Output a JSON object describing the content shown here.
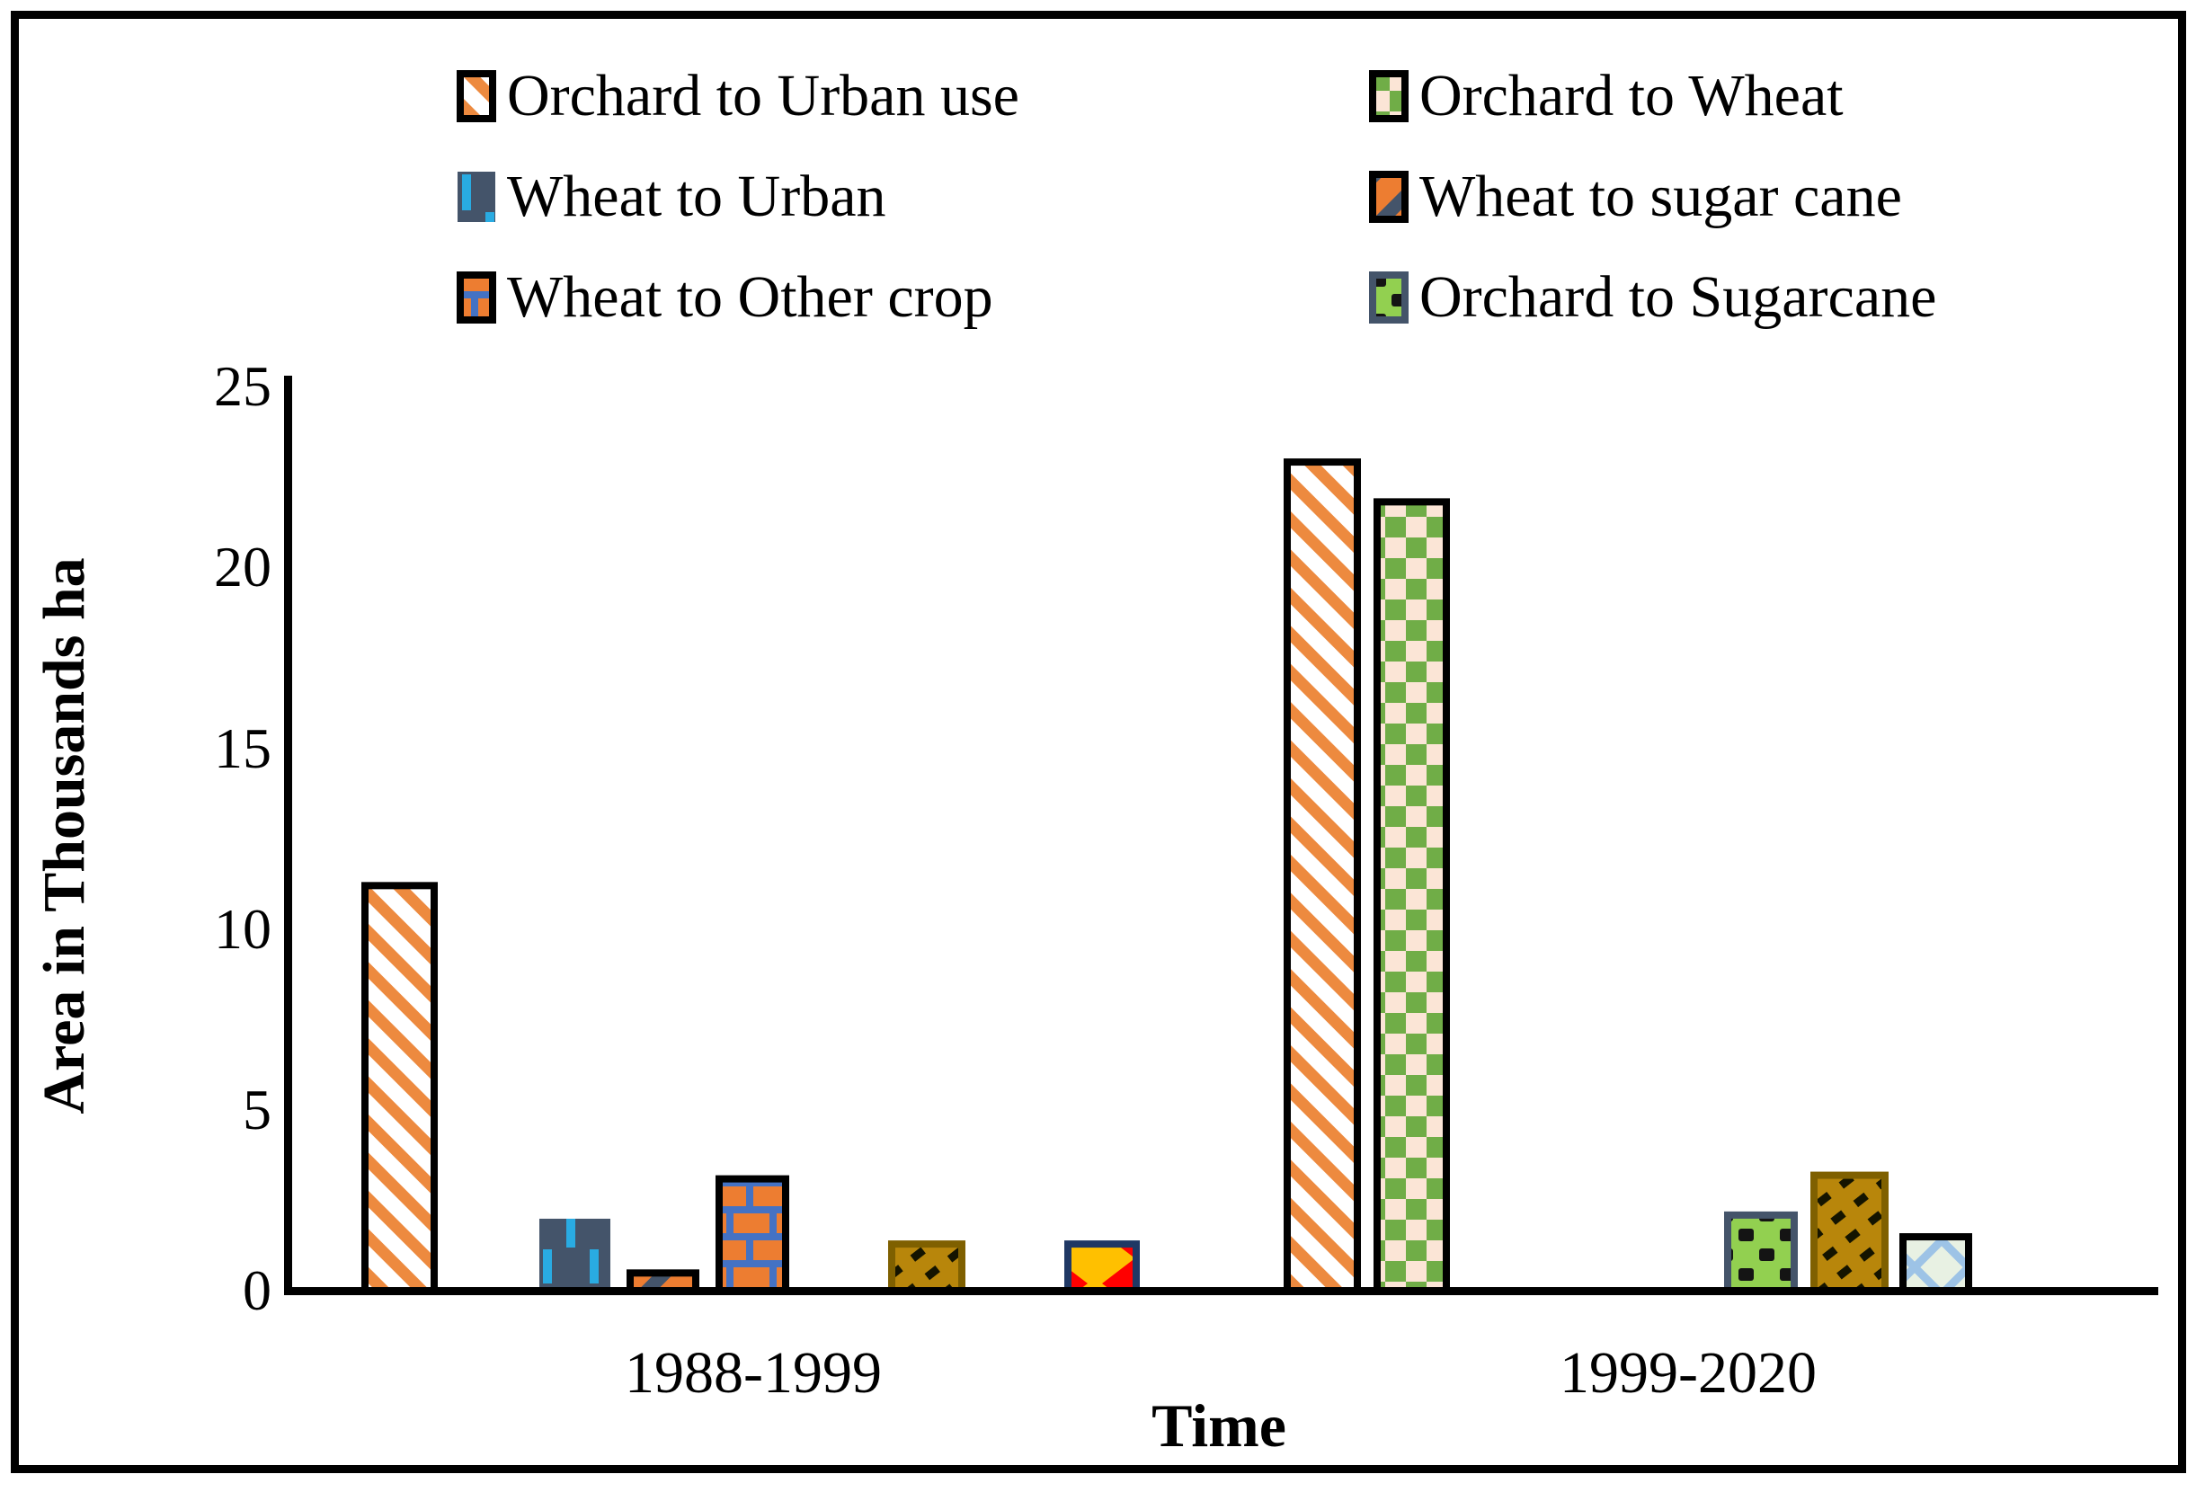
{
  "figure": {
    "background": "#FFFFFF",
    "frame_color": "#000000"
  },
  "legend": {
    "items": [
      {
        "label": "Orchard to Urban use",
        "pattern": "orchard-urban",
        "border": "#000000"
      },
      {
        "label": "Orchard to Wheat",
        "pattern": "orchard-wheat",
        "border": "#000000"
      },
      {
        "label": "Wheat to Urban",
        "pattern": "wheat-urban",
        "border": "none"
      },
      {
        "label": "Wheat to sugar cane",
        "pattern": "wheat-sugarcane",
        "border": "#000000"
      },
      {
        "label": "Wheat to Other crop",
        "pattern": "wheat-other",
        "border": "#000000"
      },
      {
        "label": "Orchard to Sugarcane",
        "pattern": "orchard-sugarcane",
        "border": "#44546A"
      }
    ]
  },
  "axes": {
    "y_title": "Area in Thousands ha",
    "x_title": "Time",
    "y_ticks": [
      25,
      20,
      15,
      10,
      5,
      0
    ],
    "categories": [
      "1988-1999",
      "1999-2020"
    ]
  },
  "palette": {
    "stripe_orange": "#ED8A3F",
    "deep_orange": "#ED7D31",
    "checker_green": "#70AD47",
    "checker_cream": "#FBE5D6",
    "slate": "#44546A",
    "cyan": "#29ABE2",
    "mortar_blue": "#4472C4",
    "bright_green": "#92D050",
    "gold": "#B8860B",
    "gold_border": "#7F6000",
    "yellow": "#FFC000",
    "red": "#FF0000",
    "pale_green": "#E8F1E3",
    "light_blue": "#9DC3E6",
    "navy": "#1F3864",
    "black": "#000000"
  },
  "chart_data": {
    "type": "bar",
    "title": "",
    "xlabel": "Time",
    "ylabel": "Area in Thousands ha",
    "ylim": [
      0,
      25
    ],
    "grid": false,
    "legend_position": "top",
    "categories": [
      "1988-1999",
      "1999-2020"
    ],
    "series": [
      {
        "name": "Orchard to Urban use",
        "values": [
          11.3,
          23.0
        ]
      },
      {
        "name": "Orchard to Wheat",
        "values": [
          null,
          21.9
        ]
      },
      {
        "name": "Wheat to Urban",
        "values": [
          2.0,
          null
        ]
      },
      {
        "name": "Wheat to sugar cane",
        "values": [
          0.6,
          null
        ]
      },
      {
        "name": "Wheat to Other crop",
        "values": [
          3.2,
          null
        ]
      },
      {
        "name": "Orchard to Sugarcane",
        "values": [
          null,
          2.2
        ]
      },
      {
        "name": "unlabeled-gold-hatch",
        "values": [
          1.4,
          3.3
        ]
      },
      {
        "name": "unlabeled-yellow-red-triangles",
        "values": [
          1.4,
          null
        ]
      },
      {
        "name": "unlabeled-pale-lattice",
        "values": [
          null,
          1.6
        ]
      }
    ],
    "bars": [
      {
        "series": "Orchard to Urban use",
        "category": "1988-1999",
        "value": 11.3,
        "pattern": "orchard-urban",
        "border": "#000000",
        "x": 402,
        "width": 85
      },
      {
        "series": "Wheat to Urban",
        "category": "1988-1999",
        "value": 2.0,
        "pattern": "wheat-urban",
        "border": "none",
        "x": 600,
        "width": 79
      },
      {
        "series": "Wheat to sugar cane",
        "category": "1988-1999",
        "value": 0.6,
        "pattern": "wheat-sugarcane",
        "border": "#000000",
        "x": 697,
        "width": 81
      },
      {
        "series": "Wheat to Other crop",
        "category": "1988-1999",
        "value": 3.2,
        "pattern": "wheat-other",
        "border": "#000000",
        "x": 796,
        "width": 82
      },
      {
        "series": "unlabeled-gold-hatch",
        "category": "1988-1999",
        "value": 1.4,
        "pattern": "gold-hatch",
        "border": "#7F6000",
        "x": 988,
        "width": 86
      },
      {
        "series": "unlabeled-yellow-red-triangles",
        "category": "1988-1999",
        "value": 1.4,
        "pattern": "yellow-red-triangles",
        "border": "#1F3864",
        "x": 1184,
        "width": 84
      },
      {
        "series": "Orchard to Urban use",
        "category": "1999-2020",
        "value": 23.0,
        "pattern": "orchard-urban",
        "border": "#000000",
        "x": 1428,
        "width": 86
      },
      {
        "series": "Orchard to Wheat",
        "category": "1999-2020",
        "value": 21.9,
        "pattern": "orchard-wheat",
        "border": "#000000",
        "x": 1528,
        "width": 85
      },
      {
        "series": "Orchard to Sugarcane",
        "category": "1999-2020",
        "value": 2.2,
        "pattern": "orchard-sugarcane",
        "border": "#44546A",
        "x": 1918,
        "width": 82
      },
      {
        "series": "unlabeled-gold-hatch",
        "category": "1999-2020",
        "value": 3.3,
        "pattern": "gold-hatch",
        "border": "#7F6000",
        "x": 2014,
        "width": 87
      },
      {
        "series": "unlabeled-pale-lattice",
        "category": "1999-2020",
        "value": 1.6,
        "pattern": "pale-lattice",
        "border": "#000000",
        "x": 2113,
        "width": 81
      }
    ]
  }
}
